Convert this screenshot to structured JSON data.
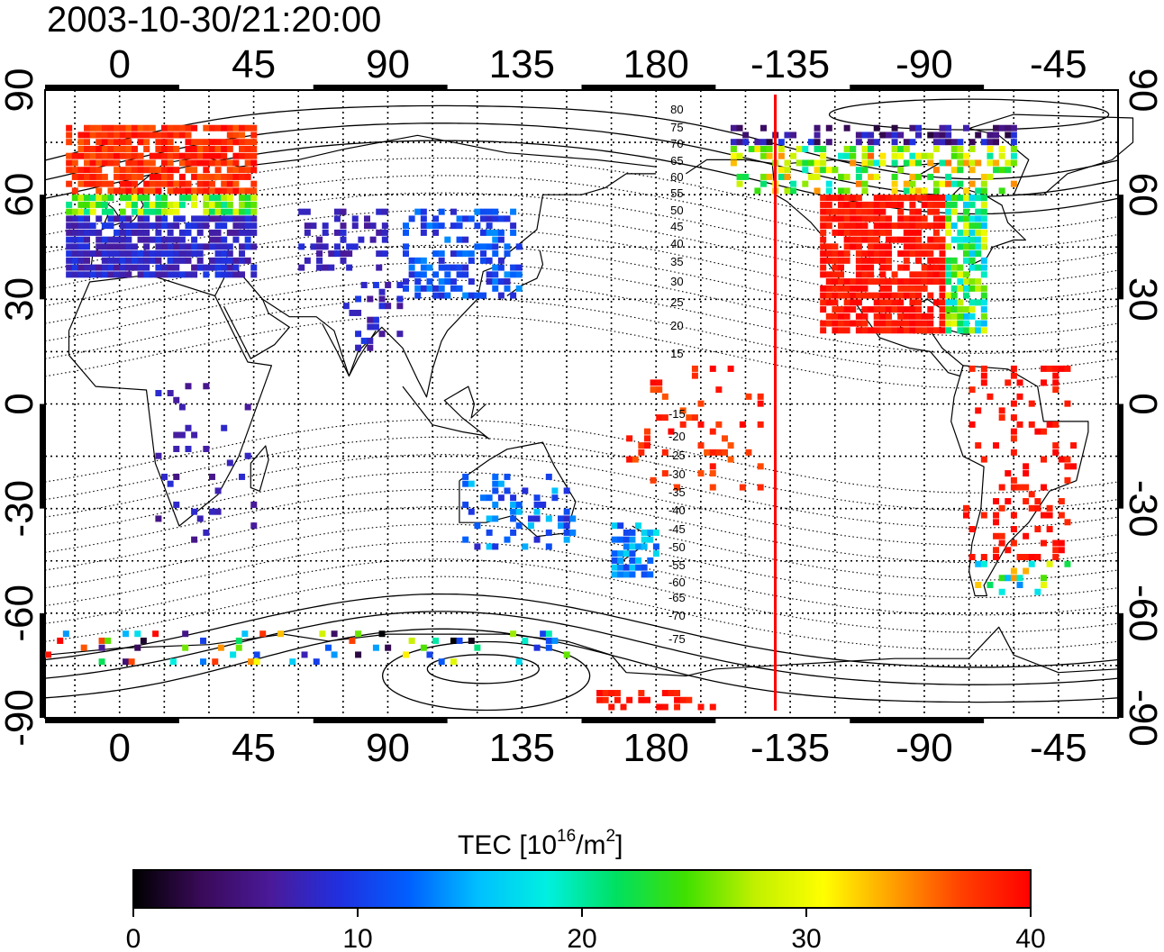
{
  "title": "2003-10-30/21:20:00",
  "map": {
    "projection": "equirectangular",
    "lon_range": [
      -25,
      335
    ],
    "lat_range": [
      -90,
      90
    ],
    "lon_ticks": [
      {
        "value": 0,
        "label": "0"
      },
      {
        "value": 45,
        "label": "45"
      },
      {
        "value": 90,
        "label": "90"
      },
      {
        "value": 135,
        "label": "135"
      },
      {
        "value": 180,
        "label": "180"
      },
      {
        "value": 225,
        "label": "-135"
      },
      {
        "value": 270,
        "label": "-90"
      },
      {
        "value": 315,
        "label": "-45"
      }
    ],
    "lat_ticks": [
      {
        "value": 90,
        "label": "90"
      },
      {
        "value": 60,
        "label": "60"
      },
      {
        "value": 30,
        "label": "30"
      },
      {
        "value": 0,
        "label": "0"
      },
      {
        "value": -30,
        "label": "-30"
      },
      {
        "value": -60,
        "label": "-60"
      },
      {
        "value": -90,
        "label": "-90"
      }
    ],
    "grid_lines": true,
    "grid_lon_step": 15,
    "grid_lat_step": 15,
    "sun_terminator_lon": 220,
    "sun_terminator_color": "#ff0000"
  },
  "contour_labels": {
    "north": [
      "80",
      "75",
      "70",
      "65",
      "60",
      "55",
      "50",
      "45",
      "40",
      "35",
      "30",
      "25",
      "20",
      "15"
    ],
    "south": [
      "-15",
      "-20",
      "-25",
      "-30",
      "-35",
      "-40",
      "-45",
      "-50",
      "-55",
      "-60",
      "-65",
      "-70",
      "-75"
    ]
  },
  "colorbar": {
    "label_main": "TEC  [10",
    "label_exp1": "16",
    "label_mid": "/m",
    "label_exp2": "2",
    "label_end": "]",
    "min": 0,
    "max": 40,
    "ticks": [
      {
        "value": 0,
        "label": "0"
      },
      {
        "value": 10,
        "label": "10"
      },
      {
        "value": 20,
        "label": "20"
      },
      {
        "value": 30,
        "label": "30"
      },
      {
        "value": 40,
        "label": "40"
      }
    ],
    "colors": [
      "#000000",
      "#3a0a5a",
      "#4a1a9a",
      "#2030e0",
      "#0060ff",
      "#00c0ff",
      "#00f0e0",
      "#00e060",
      "#40e000",
      "#c0f000",
      "#ffff00",
      "#ffa000",
      "#ff4000",
      "#ff0000"
    ]
  }
}
